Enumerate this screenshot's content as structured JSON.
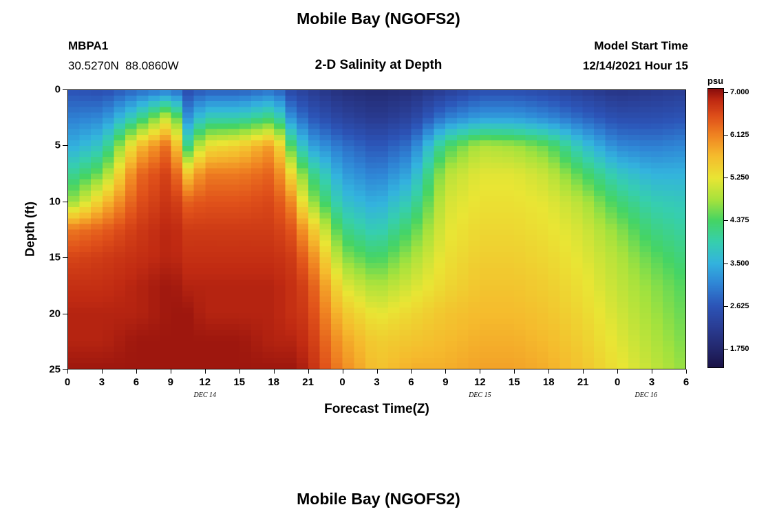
{
  "page": {
    "main_title": "Mobile Bay (NGOFS2)",
    "station_id": "MBPA1",
    "station_coords": "30.5270N  88.0860W",
    "plot_subtitle": "2-D Salinity at Depth",
    "model_start_label": "Model Start Time",
    "model_start_value": "12/14/2021 Hour 15",
    "bottom_title": "Mobile Bay (NGOFS2)"
  },
  "chart_data": {
    "type": "heatmap",
    "title": "2-D Salinity at Depth",
    "xlabel": "Forecast Time(Z)",
    "ylabel": "Depth (ft)",
    "xlim_hours": [
      0,
      54
    ],
    "ylim": [
      0,
      25
    ],
    "x_tick_hours": [
      0,
      3,
      6,
      9,
      12,
      15,
      18,
      21,
      24,
      27,
      30,
      33,
      36,
      39,
      42,
      45,
      48,
      51,
      54
    ],
    "x_tick_labels": [
      "0",
      "3",
      "6",
      "9",
      "12",
      "15",
      "18",
      "21",
      "0",
      "3",
      "6",
      "9",
      "12",
      "15",
      "18",
      "21",
      "0",
      "3",
      "6"
    ],
    "date_labels": [
      {
        "label": "DEC 14",
        "hour": 12
      },
      {
        "label": "DEC 15",
        "hour": 36
      },
      {
        "label": "DEC 16",
        "hour": 50.5
      }
    ],
    "y_ticks": [
      0,
      5,
      10,
      15,
      20,
      25
    ],
    "colorbar_label": "psu",
    "colorbar_ticks": [
      "7.000",
      "6.125",
      "5.250",
      "4.375",
      "3.500",
      "2.625",
      "1.750"
    ],
    "colorbar_range": [
      1.36,
      7.08
    ],
    "colormap_stops": [
      [
        0.0,
        "#1a1347"
      ],
      [
        0.068,
        "#23286e"
      ],
      [
        0.15,
        "#2a3f97"
      ],
      [
        0.221,
        "#2c55b8"
      ],
      [
        0.3,
        "#2f86d6"
      ],
      [
        0.374,
        "#33b3de"
      ],
      [
        0.45,
        "#36cfae"
      ],
      [
        0.527,
        "#45d464"
      ],
      [
        0.6,
        "#a4e23d"
      ],
      [
        0.68,
        "#e9e534"
      ],
      [
        0.76,
        "#f5bb2d"
      ],
      [
        0.833,
        "#f08522"
      ],
      [
        0.9,
        "#e0511a"
      ],
      [
        0.96,
        "#c02a12"
      ],
      [
        1.0,
        "#8b0d0c"
      ]
    ],
    "grid": {
      "hours": [
        0,
        3,
        6,
        9,
        10.5,
        12,
        15,
        18,
        19.5,
        21,
        24,
        27,
        30,
        33,
        36,
        39,
        42,
        45,
        48,
        51,
        54
      ],
      "depths_ft": [
        0,
        2.5,
        5,
        7.5,
        10,
        12.5,
        15,
        17.5,
        20,
        22.5,
        25
      ],
      "salinity_psu": [
        [
          2.6,
          2.5,
          2.8,
          3.0,
          2.5,
          2.7,
          2.7,
          2.9,
          2.4,
          2.2,
          1.9,
          1.8,
          1.9,
          2.2,
          2.5,
          2.5,
          2.4,
          2.2,
          2.0,
          2.1,
          2.2
        ],
        [
          3.0,
          3.1,
          4.0,
          5.2,
          3.2,
          3.9,
          3.9,
          4.3,
          3.2,
          2.7,
          2.3,
          2.1,
          2.3,
          3.0,
          3.3,
          3.3,
          3.1,
          2.8,
          2.5,
          2.5,
          2.6
        ],
        [
          3.4,
          3.8,
          5.6,
          6.4,
          4.2,
          5.3,
          5.5,
          6.0,
          4.4,
          3.4,
          2.9,
          2.6,
          2.9,
          4.3,
          4.9,
          4.8,
          4.5,
          3.7,
          3.1,
          3.0,
          3.1
        ],
        [
          4.0,
          4.6,
          6.3,
          6.7,
          5.6,
          6.2,
          6.2,
          6.4,
          5.4,
          4.3,
          3.3,
          3.0,
          3.4,
          4.9,
          5.2,
          5.2,
          5.0,
          4.4,
          3.8,
          3.5,
          3.5
        ],
        [
          4.6,
          5.6,
          6.5,
          6.8,
          6.4,
          6.5,
          6.5,
          6.6,
          6.1,
          4.9,
          3.7,
          3.4,
          3.9,
          5.1,
          5.3,
          5.3,
          5.2,
          4.9,
          4.3,
          3.9,
          3.8
        ],
        [
          6.2,
          6.4,
          6.7,
          6.9,
          6.7,
          6.7,
          6.7,
          6.7,
          6.5,
          5.8,
          4.2,
          3.8,
          4.4,
          5.2,
          5.4,
          5.4,
          5.3,
          5.1,
          4.7,
          4.2,
          4.0
        ],
        [
          6.6,
          6.7,
          6.8,
          6.9,
          6.8,
          6.8,
          6.8,
          6.8,
          6.7,
          6.3,
          4.7,
          4.3,
          4.8,
          5.3,
          5.5,
          5.5,
          5.4,
          5.2,
          4.9,
          4.5,
          4.2
        ],
        [
          6.8,
          6.8,
          6.9,
          7.0,
          6.9,
          6.9,
          6.9,
          6.9,
          6.8,
          6.6,
          5.2,
          4.8,
          5.1,
          5.4,
          5.6,
          5.6,
          5.5,
          5.3,
          5.0,
          4.7,
          4.4
        ],
        [
          6.9,
          6.9,
          6.9,
          7.0,
          7.0,
          6.9,
          6.9,
          6.9,
          6.8,
          6.7,
          5.6,
          5.2,
          5.4,
          5.6,
          5.7,
          5.7,
          5.6,
          5.4,
          5.1,
          4.8,
          4.5
        ],
        [
          6.9,
          6.9,
          7.0,
          7.0,
          7.0,
          7.0,
          7.0,
          6.9,
          6.9,
          6.8,
          5.9,
          5.5,
          5.6,
          5.7,
          5.8,
          5.8,
          5.7,
          5.5,
          5.2,
          4.9,
          4.6
        ],
        [
          7.0,
          7.0,
          7.0,
          7.0,
          7.0,
          7.0,
          7.0,
          7.0,
          7.0,
          6.9,
          6.1,
          5.6,
          5.8,
          5.8,
          5.9,
          5.9,
          5.8,
          5.6,
          5.3,
          5.0,
          4.7
        ]
      ]
    }
  }
}
